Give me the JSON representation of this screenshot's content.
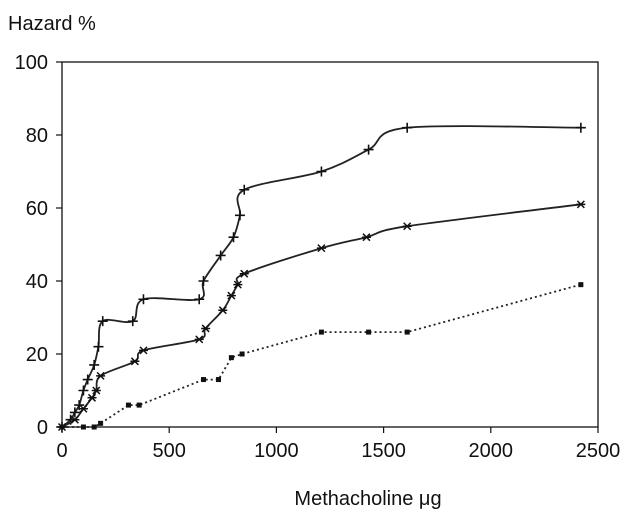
{
  "chart_data": {
    "type": "line",
    "title": "",
    "ylabel": "Hazard %",
    "xlabel": "Methacholine μg",
    "xlim": [
      0,
      2500
    ],
    "ylim": [
      0,
      100
    ],
    "xticks": [
      0,
      500,
      1000,
      1500,
      2000,
      2500
    ],
    "yticks": [
      0,
      20,
      40,
      60,
      80,
      100
    ],
    "xtick_labels": [
      "0",
      "500",
      "1000",
      "1500",
      "2000",
      "2500"
    ],
    "ytick_labels": [
      "0",
      "20",
      "40",
      "60",
      "80",
      "100"
    ],
    "grid": false,
    "legend": "none",
    "series": [
      {
        "marker": "plus",
        "line_style": "solid",
        "points": [
          [
            0,
            0
          ],
          [
            40,
            2
          ],
          [
            60,
            4
          ],
          [
            80,
            6
          ],
          [
            100,
            10
          ],
          [
            120,
            13
          ],
          [
            150,
            17
          ],
          [
            170,
            22
          ],
          [
            190,
            29
          ],
          [
            330,
            29
          ],
          [
            380,
            35
          ],
          [
            640,
            35
          ],
          [
            660,
            40
          ],
          [
            740,
            47
          ],
          [
            800,
            52
          ],
          [
            830,
            58
          ],
          [
            850,
            65
          ],
          [
            1210,
            70
          ],
          [
            1430,
            76
          ],
          [
            1610,
            82
          ],
          [
            2420,
            82
          ]
        ]
      },
      {
        "marker": "asterisk",
        "line_style": "solid",
        "points": [
          [
            0,
            0
          ],
          [
            60,
            2
          ],
          [
            100,
            5
          ],
          [
            140,
            8
          ],
          [
            160,
            10
          ],
          [
            180,
            14
          ],
          [
            340,
            18
          ],
          [
            380,
            21
          ],
          [
            640,
            24
          ],
          [
            670,
            27
          ],
          [
            750,
            32
          ],
          [
            790,
            36
          ],
          [
            820,
            39
          ],
          [
            850,
            42
          ],
          [
            1210,
            49
          ],
          [
            1420,
            52
          ],
          [
            1610,
            55
          ],
          [
            2420,
            61
          ]
        ]
      },
      {
        "marker": "dot",
        "line_style": "dotted",
        "points": [
          [
            0,
            0
          ],
          [
            100,
            0
          ],
          [
            150,
            0
          ],
          [
            180,
            1
          ],
          [
            310,
            6
          ],
          [
            360,
            6
          ],
          [
            660,
            13
          ],
          [
            730,
            13
          ],
          [
            790,
            19
          ],
          [
            840,
            20
          ],
          [
            1210,
            26
          ],
          [
            1430,
            26
          ],
          [
            1610,
            26
          ],
          [
            2420,
            39
          ]
        ]
      }
    ]
  }
}
